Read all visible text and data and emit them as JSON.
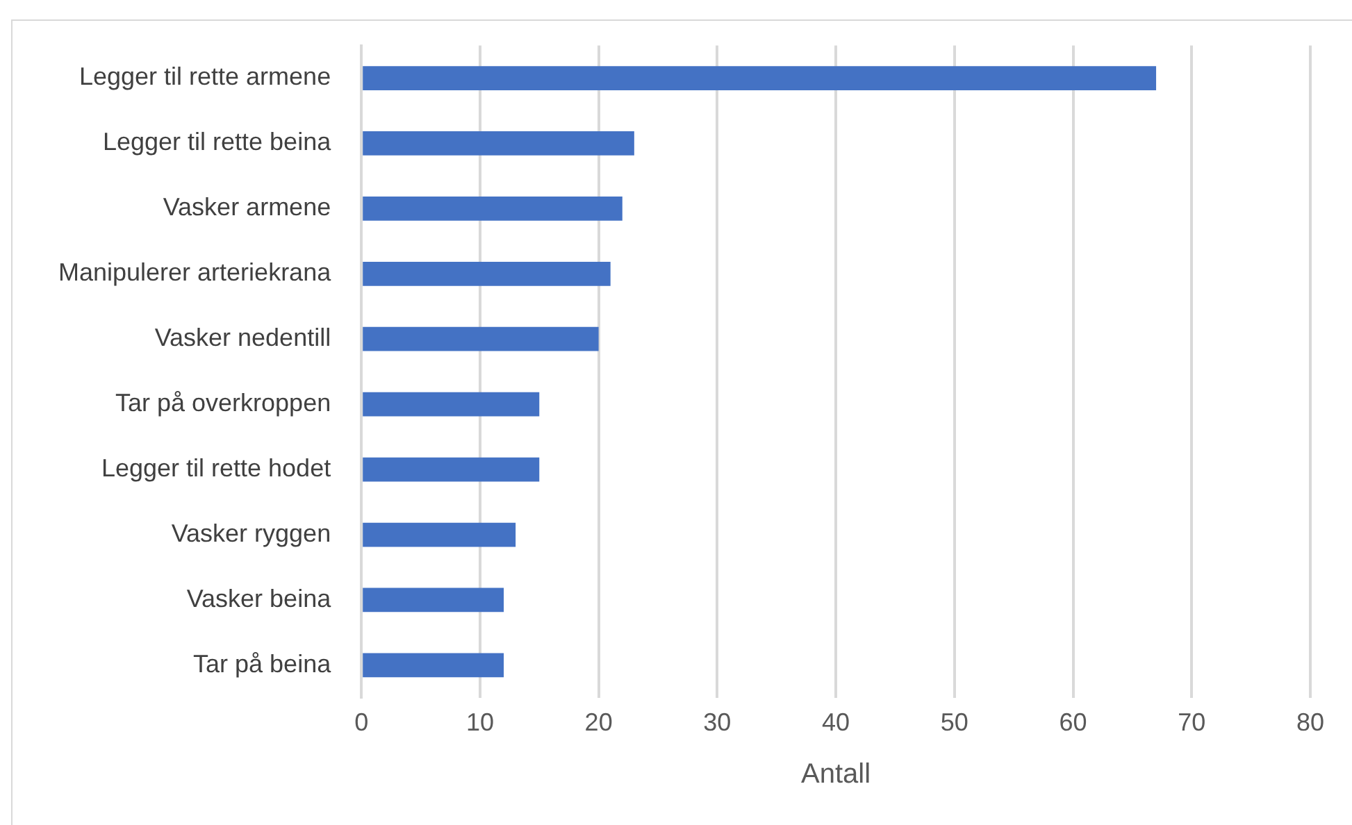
{
  "chart_data": {
    "type": "bar",
    "orientation": "horizontal",
    "xlabel": "Antall",
    "categories": [
      "Legger til rette armene",
      "Legger til rette beina",
      "Vasker armene",
      "Manipulerer arteriekrana",
      "Vasker nedentill",
      "Tar på overkroppen",
      "Legger til rette hodet",
      "Vasker ryggen",
      "Vasker beina",
      "Tar på beina"
    ],
    "values": [
      67,
      23,
      22,
      21,
      20,
      15,
      15,
      13,
      12,
      12
    ],
    "color": "#4472c4",
    "xlim": [
      0,
      80
    ],
    "xticks": [
      0,
      10,
      20,
      30,
      40,
      50,
      60,
      70,
      80
    ],
    "grid": "x"
  }
}
